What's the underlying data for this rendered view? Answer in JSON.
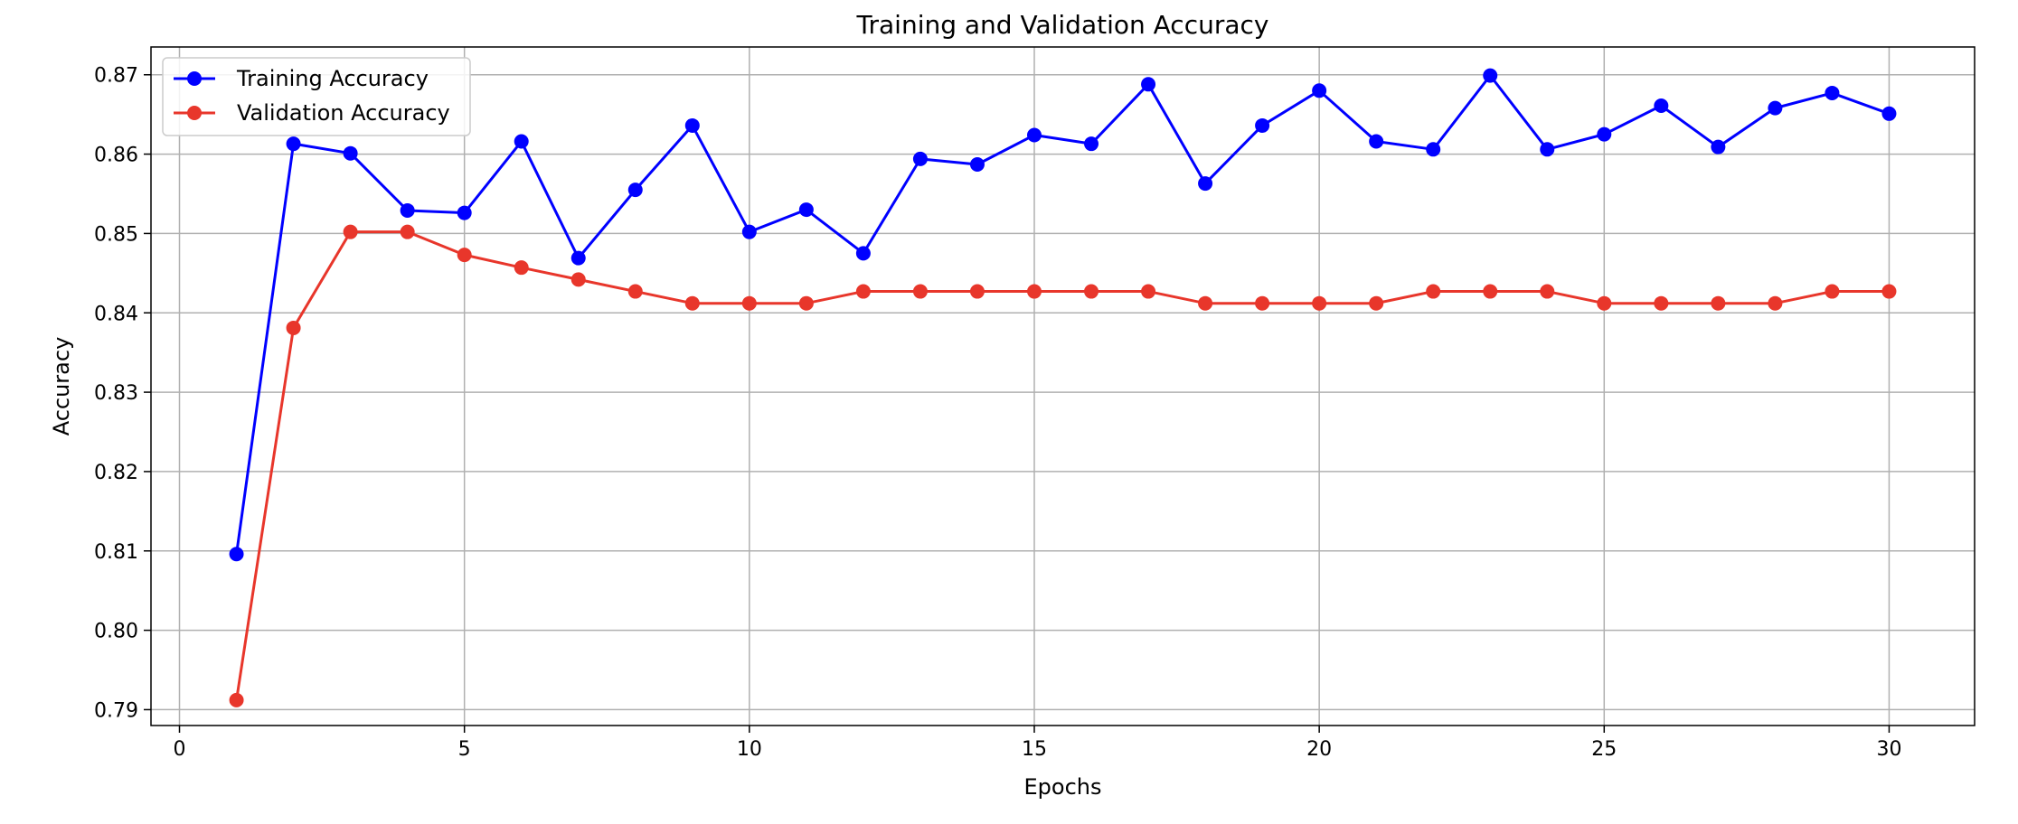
{
  "chart_data": {
    "type": "line",
    "title": "Training and Validation Accuracy",
    "xlabel": "Epochs",
    "ylabel": "Accuracy",
    "xlim": [
      -0.5,
      31.5
    ],
    "ylim": [
      0.788,
      0.8735
    ],
    "xticks": [
      0,
      5,
      10,
      15,
      20,
      25,
      30
    ],
    "yticks": [
      0.79,
      0.8,
      0.81,
      0.82,
      0.83,
      0.84,
      0.85,
      0.86,
      0.87
    ],
    "ytick_labels": [
      "0.79",
      "0.80",
      "0.81",
      "0.82",
      "0.83",
      "0.84",
      "0.85",
      "0.86",
      "0.87"
    ],
    "grid": true,
    "legend_position": "top-left",
    "x": [
      1,
      2,
      3,
      4,
      5,
      6,
      7,
      8,
      9,
      10,
      11,
      12,
      13,
      14,
      15,
      16,
      17,
      18,
      19,
      20,
      21,
      22,
      23,
      24,
      25,
      26,
      27,
      28,
      29,
      30
    ],
    "series": [
      {
        "name": "Training Accuracy",
        "color": "#0000ff",
        "marker": "circle",
        "values": [
          0.8096,
          0.8613,
          0.8601,
          0.8529,
          0.8526,
          0.8616,
          0.8469,
          0.8555,
          0.8636,
          0.8502,
          0.853,
          0.8475,
          0.8594,
          0.8587,
          0.8624,
          0.8613,
          0.8688,
          0.8563,
          0.8636,
          0.868,
          0.8616,
          0.8606,
          0.8699,
          0.8606,
          0.8625,
          0.8661,
          0.8609,
          0.8658,
          0.8677,
          0.8651
        ]
      },
      {
        "name": "Validation Accuracy",
        "color": "#e8362b",
        "marker": "circle",
        "values": [
          0.7912,
          0.8381,
          0.8502,
          0.8502,
          0.8473,
          0.8457,
          0.8442,
          0.8427,
          0.8412,
          0.8412,
          0.8412,
          0.8427,
          0.8427,
          0.8427,
          0.8427,
          0.8427,
          0.8427,
          0.8412,
          0.8412,
          0.8412,
          0.8412,
          0.8427,
          0.8427,
          0.8427,
          0.8412,
          0.8412,
          0.8412,
          0.8412,
          0.8427,
          0.8427
        ]
      }
    ]
  }
}
